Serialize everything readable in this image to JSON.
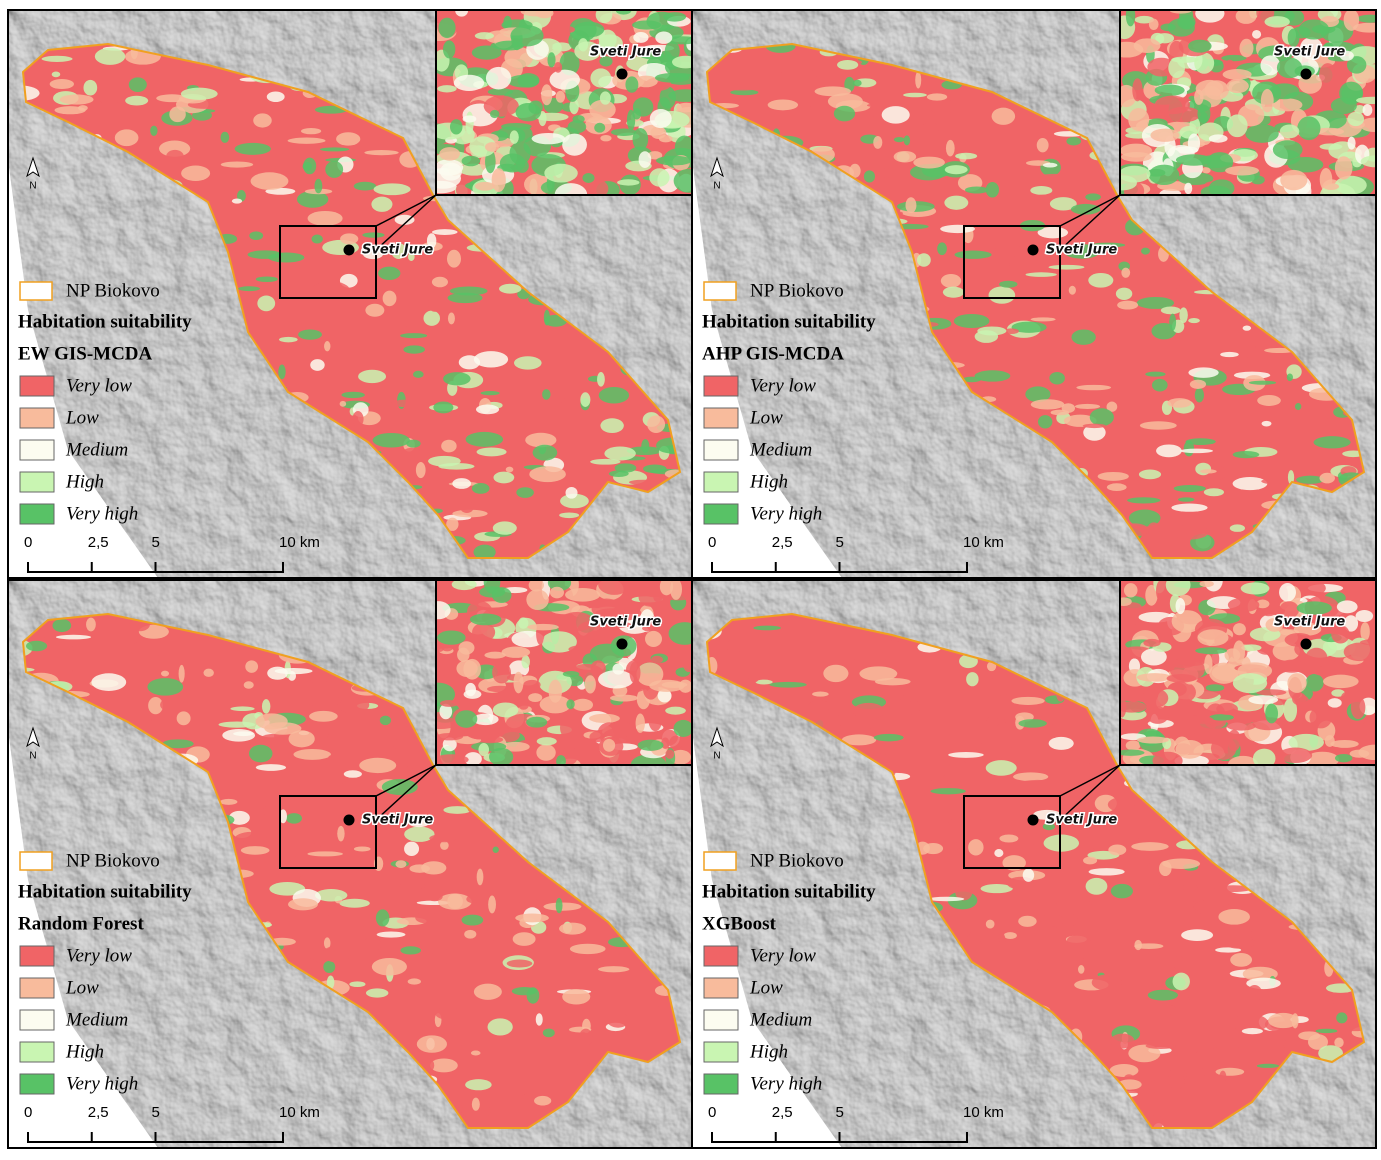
{
  "place": "Sveti Jure",
  "north": "N",
  "legend": {
    "boundary": "NP Biokovo",
    "boundary_color": "#f0a020",
    "title": "Habitation suitability",
    "classes": [
      {
        "label": "Very low",
        "color": "#f06466"
      },
      {
        "label": "Low",
        "color": "#f8bb9c"
      },
      {
        "label": "Medium",
        "color": "#fcfcf0"
      },
      {
        "label": "High",
        "color": "#c9f5b2"
      },
      {
        "label": "Very high",
        "color": "#58c266"
      }
    ]
  },
  "scale_bar": {
    "ticks": [
      {
        "value": 0,
        "label": "0"
      },
      {
        "value": 2.5,
        "label": "2,5"
      },
      {
        "value": 5,
        "label": "5"
      },
      {
        "value": 10,
        "label": "10 km"
      }
    ]
  },
  "panels": [
    {
      "model": "EW GIS-MCDA"
    },
    {
      "model": "AHP GIS-MCDA"
    },
    {
      "model": "Random Forest"
    },
    {
      "model": "XGBoost"
    }
  ]
}
